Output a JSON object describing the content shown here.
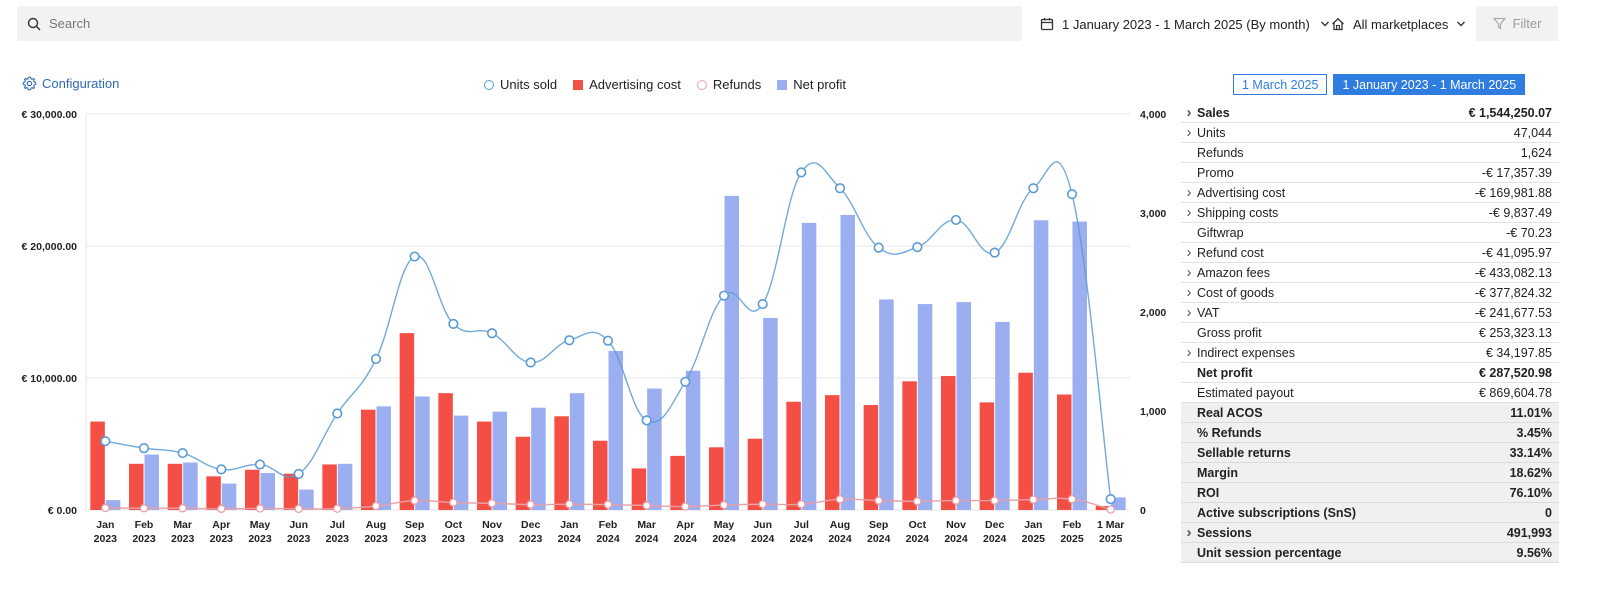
{
  "search": {
    "placeholder": "Search"
  },
  "date_range": {
    "label": "1 January 2023 - 1 March 2025 (By month)"
  },
  "marketplace": {
    "label": "All marketplaces"
  },
  "filter": {
    "label": "Filter"
  },
  "configuration": {
    "label": "Configuration"
  },
  "period_tabs": [
    {
      "label": "1 March 2025",
      "active": false
    },
    {
      "label": "1 January 2023 - 1 March 2025",
      "active": true
    }
  ],
  "colors": {
    "units": "#5b9bd5",
    "advertising": "#f44f45",
    "refunds": "#e7a0a8",
    "net_profit": "#9aaef0",
    "accent": "#2f7de1"
  },
  "chart_data": {
    "type": "bar",
    "categories": [
      [
        "Jan",
        "2023"
      ],
      [
        "Feb",
        "2023"
      ],
      [
        "Mar",
        "2023"
      ],
      [
        "Apr",
        "2023"
      ],
      [
        "May",
        "2023"
      ],
      [
        "Jun",
        "2023"
      ],
      [
        "Jul",
        "2023"
      ],
      [
        "Aug",
        "2023"
      ],
      [
        "Sep",
        "2023"
      ],
      [
        "Oct",
        "2023"
      ],
      [
        "Nov",
        "2023"
      ],
      [
        "Dec",
        "2023"
      ],
      [
        "Jan",
        "2024"
      ],
      [
        "Feb",
        "2024"
      ],
      [
        "Mar",
        "2024"
      ],
      [
        "Apr",
        "2024"
      ],
      [
        "May",
        "2024"
      ],
      [
        "Jun",
        "2024"
      ],
      [
        "Jul",
        "2024"
      ],
      [
        "Aug",
        "2024"
      ],
      [
        "Sep",
        "2024"
      ],
      [
        "Oct",
        "2024"
      ],
      [
        "Nov",
        "2024"
      ],
      [
        "Dec",
        "2024"
      ],
      [
        "Jan",
        "2025"
      ],
      [
        "Feb",
        "2025"
      ],
      [
        "1 Mar",
        "2025"
      ]
    ],
    "series": [
      {
        "name": "Advertising cost",
        "kind": "bar",
        "axis": "left",
        "values": [
          6700,
          3500,
          3500,
          2550,
          3050,
          2750,
          3450,
          7600,
          13400,
          8850,
          6700,
          5550,
          7100,
          5250,
          3150,
          4100,
          4750,
          5400,
          8200,
          8700,
          7950,
          9750,
          10150,
          8150,
          10400,
          8750,
          300
        ]
      },
      {
        "name": "Net profit",
        "kind": "bar",
        "axis": "left",
        "values": [
          750,
          4200,
          3600,
          2000,
          2800,
          1550,
          3500,
          7850,
          8600,
          7150,
          7450,
          7750,
          8850,
          12050,
          9200,
          10550,
          23800,
          14550,
          21750,
          22350,
          15950,
          15600,
          15750,
          14250,
          21950,
          21850,
          950
        ]
      },
      {
        "name": "Units sold",
        "kind": "line",
        "axis": "right",
        "values": [
          695,
          625,
          575,
          410,
          460,
          365,
          975,
          1525,
          2560,
          1880,
          1785,
          1490,
          1715,
          1710,
          905,
          1295,
          2165,
          2080,
          3410,
          3250,
          2650,
          2655,
          2930,
          2600,
          3250,
          3190,
          110
        ]
      },
      {
        "name": "Refunds",
        "kind": "line",
        "axis": "right",
        "values": [
          20,
          18,
          18,
          12,
          16,
          12,
          14,
          40,
          95,
          75,
          68,
          55,
          58,
          55,
          45,
          35,
          50,
          58,
          58,
          108,
          95,
          88,
          95,
          95,
          105,
          110,
          5
        ]
      }
    ],
    "left_axis": {
      "ticks": [
        "€ 0.00",
        "€ 10,000.00",
        "€ 20,000.00",
        "€ 30,000.00"
      ],
      "range": [
        0,
        30000
      ]
    },
    "right_axis": {
      "ticks": [
        "0",
        "1,000",
        "2,000",
        "3,000",
        "4,000"
      ],
      "range": [
        0,
        4000
      ]
    },
    "legend": [
      "Units sold",
      "Advertising cost",
      "Refunds",
      "Net profit"
    ],
    "legend_position": "top-center",
    "grid": true
  },
  "stats": [
    {
      "label": "Sales",
      "value": "€ 1,544,250.07",
      "expand": true,
      "bold": true,
      "shaded": false
    },
    {
      "label": "Units",
      "value": "47,044",
      "expand": true,
      "bold": false,
      "shaded": false
    },
    {
      "label": "Refunds",
      "value": "1,624",
      "expand": false,
      "bold": false,
      "shaded": false
    },
    {
      "label": "Promo",
      "value": "-€ 17,357.39",
      "expand": false,
      "bold": false,
      "shaded": false
    },
    {
      "label": "Advertising cost",
      "value": "-€ 169,981.88",
      "expand": true,
      "bold": false,
      "shaded": false
    },
    {
      "label": "Shipping costs",
      "value": "-€ 9,837.49",
      "expand": true,
      "bold": false,
      "shaded": false
    },
    {
      "label": "Giftwrap",
      "value": "-€ 70.23",
      "expand": false,
      "bold": false,
      "shaded": false
    },
    {
      "label": "Refund cost",
      "value": "-€ 41,095.97",
      "expand": true,
      "bold": false,
      "shaded": false
    },
    {
      "label": "Amazon fees",
      "value": "-€ 433,082.13",
      "expand": true,
      "bold": false,
      "shaded": false
    },
    {
      "label": "Cost of goods",
      "value": "-€ 377,824.32",
      "expand": true,
      "bold": false,
      "shaded": false
    },
    {
      "label": "VAT",
      "value": "-€ 241,677.53",
      "expand": true,
      "bold": false,
      "shaded": false
    },
    {
      "label": "Gross profit",
      "value": "€ 253,323.13",
      "expand": false,
      "bold": false,
      "shaded": false
    },
    {
      "label": "Indirect expenses",
      "value": "€ 34,197.85",
      "expand": true,
      "bold": false,
      "shaded": false
    },
    {
      "label": "Net profit",
      "value": "€ 287,520.98",
      "expand": false,
      "bold": true,
      "shaded": false
    },
    {
      "label": "Estimated payout",
      "value": "€ 869,604.78",
      "expand": false,
      "bold": false,
      "shaded": false
    },
    {
      "label": "Real ACOS",
      "value": "11.01%",
      "expand": false,
      "bold": true,
      "shaded": true
    },
    {
      "label": "% Refunds",
      "value": "3.45%",
      "expand": false,
      "bold": true,
      "shaded": true
    },
    {
      "label": "Sellable returns",
      "value": "33.14%",
      "expand": false,
      "bold": true,
      "shaded": true
    },
    {
      "label": "Margin",
      "value": "18.62%",
      "expand": false,
      "bold": true,
      "shaded": true
    },
    {
      "label": "ROI",
      "value": "76.10%",
      "expand": false,
      "bold": true,
      "shaded": true
    },
    {
      "label": "Active subscriptions (SnS)",
      "value": "0",
      "expand": false,
      "bold": true,
      "shaded": true
    },
    {
      "label": "Sessions",
      "value": "491,993",
      "expand": true,
      "bold": true,
      "shaded": true
    },
    {
      "label": "Unit session percentage",
      "value": "9.56%",
      "expand": false,
      "bold": true,
      "shaded": true
    }
  ]
}
